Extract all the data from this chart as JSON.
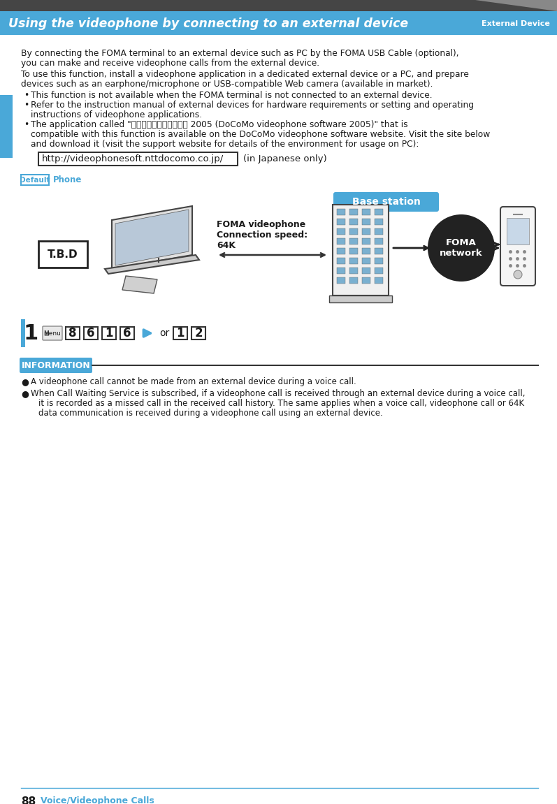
{
  "page_bg": "#ffffff",
  "header_bg": "#4aa8d8",
  "header_dark_bg": "#454545",
  "header_title": "Using the videophone by connecting to an external device",
  "header_subtitle": "External Device",
  "header_title_color": "#ffffff",
  "header_subtitle_color": "#ffffff",
  "body_text_color": "#1a1a1a",
  "blue_accent": "#4aa8d8",
  "sidebar_blue": "#4aa8d8",
  "para1_l1": "By connecting the FOMA terminal to an external device such as PC by the FOMA USB Cable (optional),",
  "para1_l2": "you can make and receive videophone calls from the external device.",
  "para2_l1": "To use this function, install a videophone application in a dedicated external device or a PC, and prepare",
  "para2_l2": "devices such as an earphone/microphone or USB-compatible Web camera (available in market).",
  "bullet1": "This function is not available when the FOMA terminal is not connected to an external device.",
  "bullet2_l1": "Refer to the instruction manual of external devices for hardware requirements or setting and operating",
  "bullet2_l2": "instructions of videophone applications.",
  "bullet3_l1": "The application called \"ドコモテレビ電話ソフト 2005 (DoCoMo videophone software 2005)\" that is",
  "bullet3_l2": "compatible with this function is available on the DoCoMo videophone software website. Visit the site below",
  "bullet3_l3": "and download it (visit the support website for details of the environment for usage on PC):",
  "url_text": "http://videophonesoft.nttdocomo.co.jp/",
  "url_suffix": "(in Japanese only)",
  "default_label": "Default",
  "phone_label": "Phone",
  "info_label": "INFORMATION",
  "info_bullet1": "A videophone call cannot be made from an external device during a voice call.",
  "info_bullet2_l1": "When Call Waiting Service is subscribed, if a videophone call is received through an external device during a voice call,",
  "info_bullet2_l2": "it is recorded as a missed call in the received call history. The same applies when a voice call, videophone call or 64K",
  "info_bullet2_l3": "data communication is received during a videophone call using an external device.",
  "step_number": "1",
  "step_keys": [
    "8",
    "6",
    "1",
    "6"
  ],
  "step_or": "or",
  "step_opts": [
    "1",
    "2"
  ],
  "diagram_base_station": "Base station",
  "diagram_foma_label1": "FOMA videophone",
  "diagram_foma_label2": "Connection speed:",
  "diagram_foma_label3": "64K",
  "diagram_tbd": "T.B.D",
  "diagram_network": "FOMA\nnetwork",
  "footer_number": "88",
  "footer_text": "Voice/Videophone Calls",
  "footer_line_color": "#4aa8d8",
  "foma_network_color": "#222222"
}
